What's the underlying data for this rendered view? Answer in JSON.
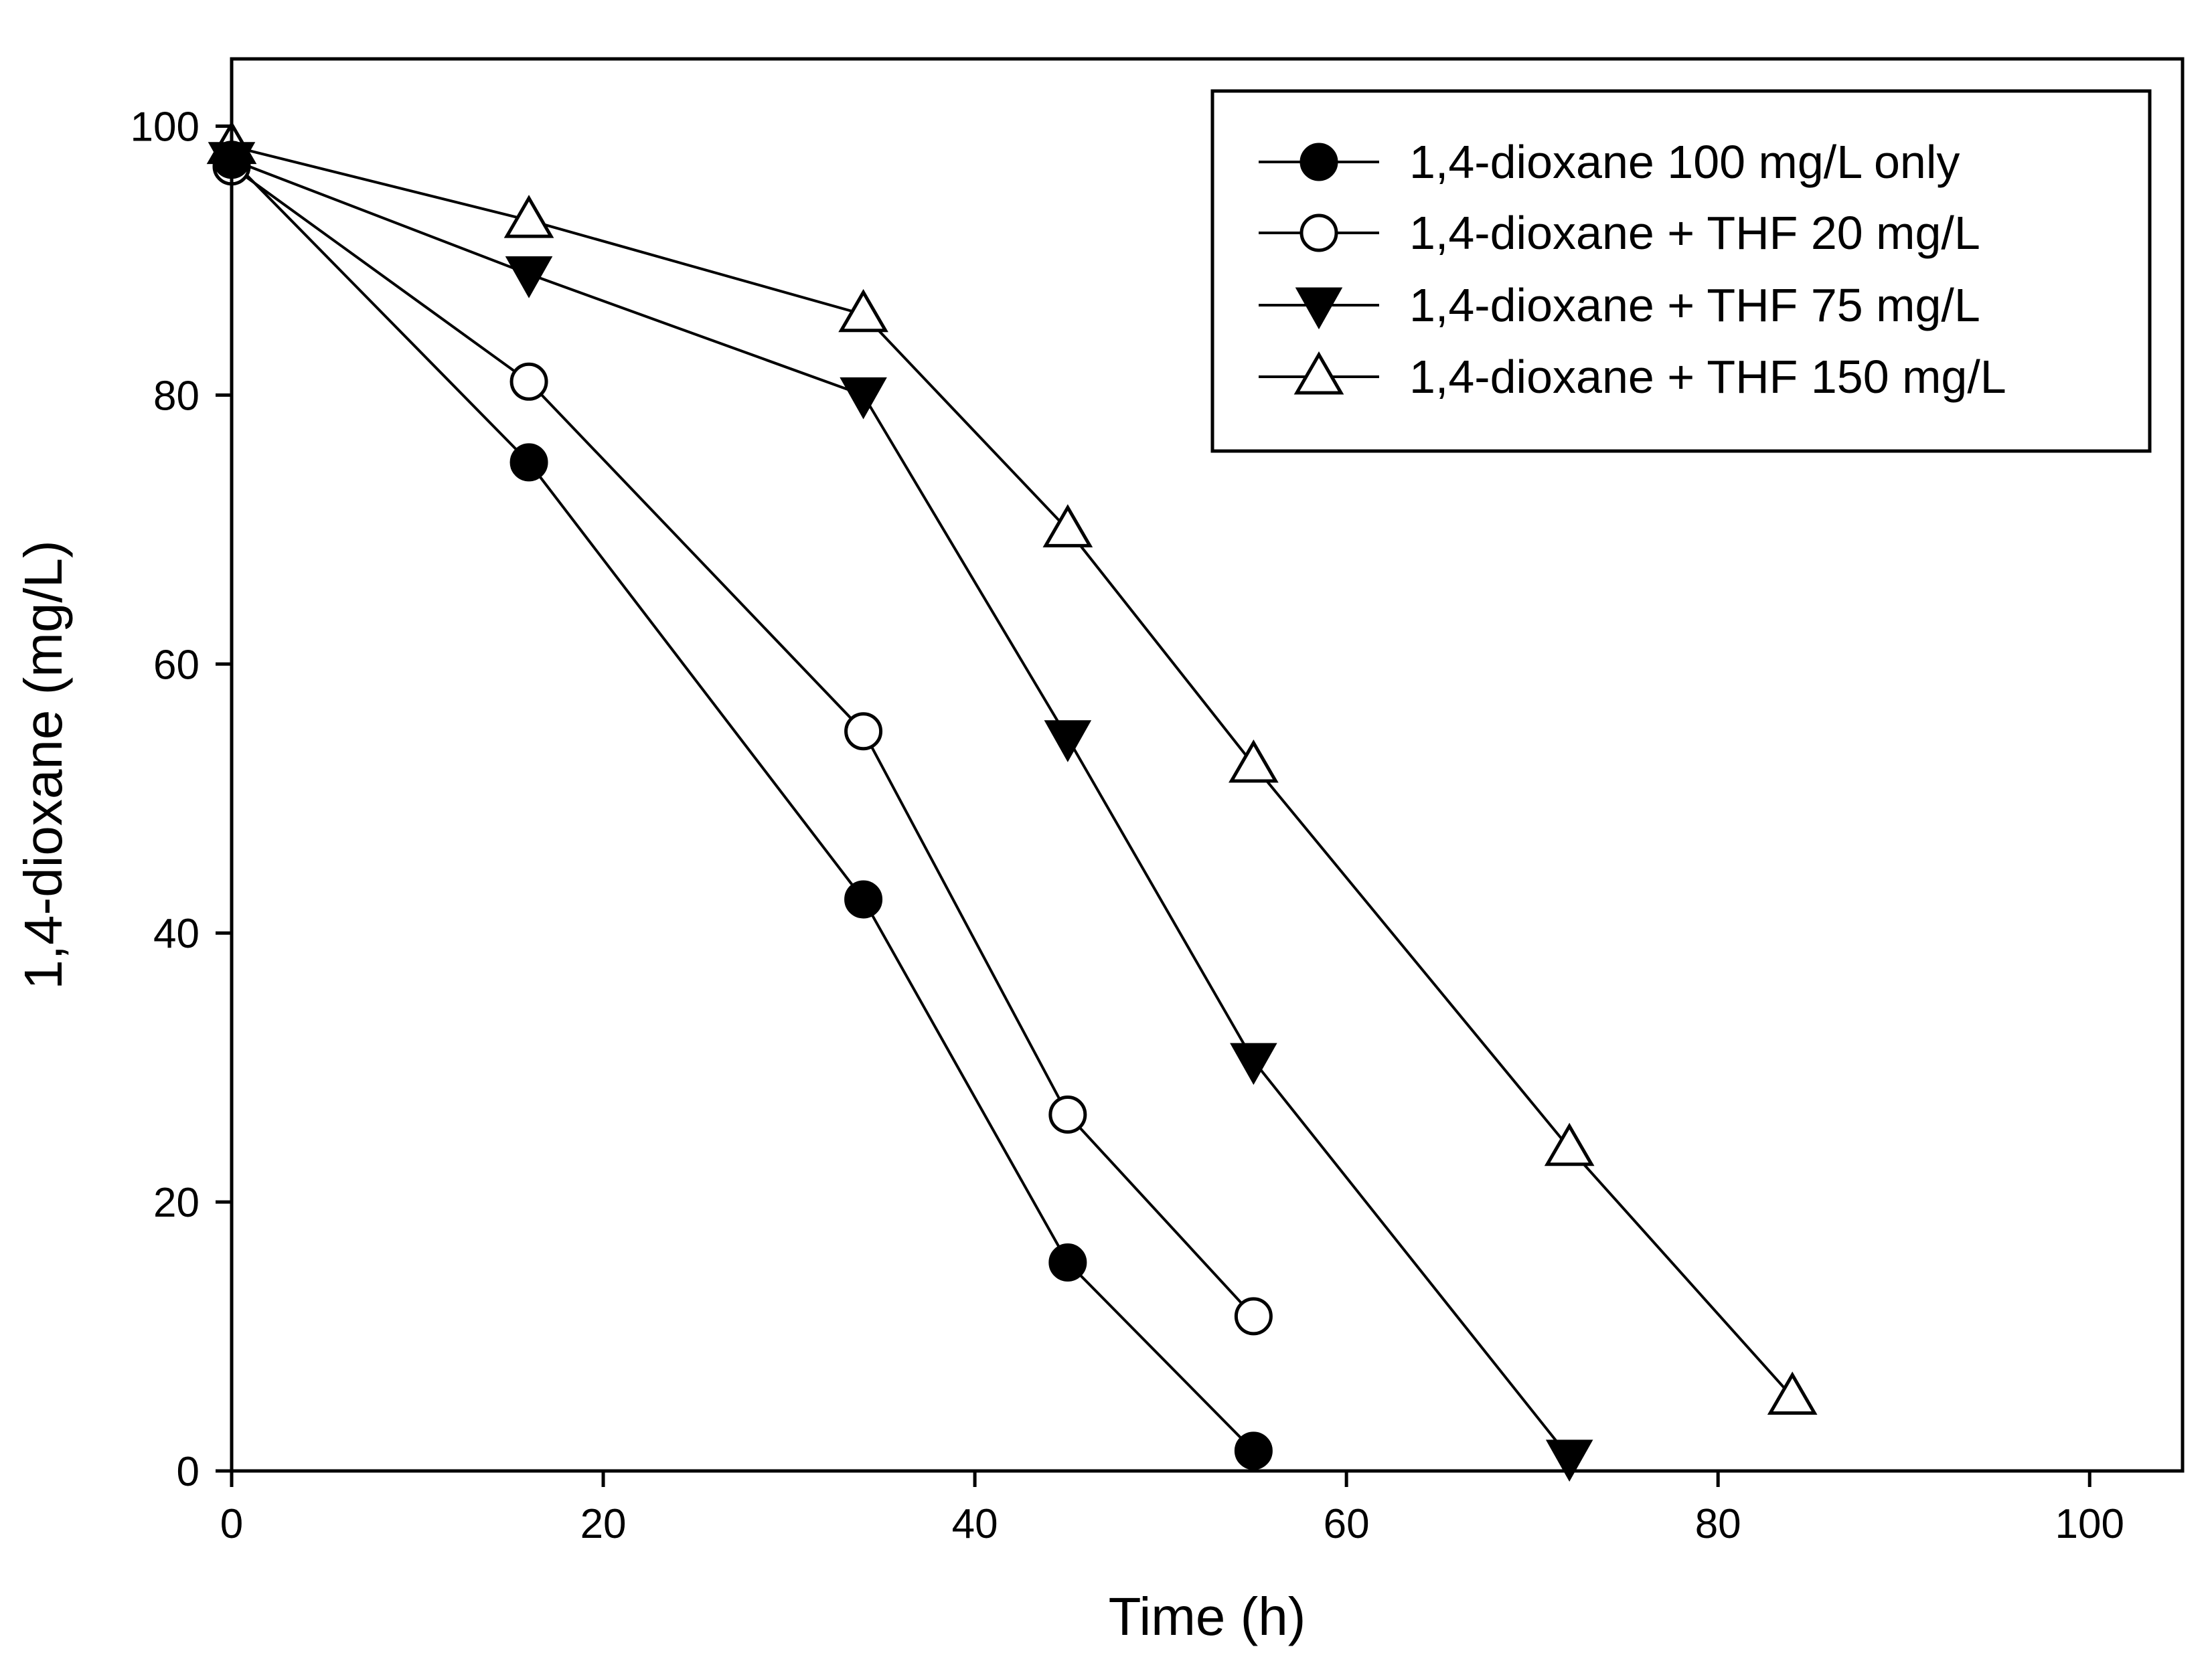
{
  "chart_data": {
    "type": "line",
    "title": "",
    "xlabel": "Time (h)",
    "ylabel": "1,4-dioxane (mg/L)",
    "xlim": [
      0,
      105
    ],
    "ylim": [
      0,
      105
    ],
    "xticks": [
      0,
      20,
      40,
      60,
      80,
      100
    ],
    "yticks": [
      0,
      20,
      40,
      60,
      80,
      100
    ],
    "x_tick_labels": [
      "0",
      "20",
      "40",
      "60",
      "80",
      "100"
    ],
    "y_tick_labels": [
      "0",
      "20",
      "40",
      "60",
      "80",
      "100"
    ],
    "grid": false,
    "legend_position": "top-right",
    "series": [
      {
        "name": "1,4-dioxane 100 mg/L only",
        "marker": "filled-circle",
        "color": "#000000",
        "x": [
          0,
          16,
          34,
          45,
          55
        ],
        "y": [
          97.5,
          75,
          42.5,
          15.5,
          1.5
        ]
      },
      {
        "name": "1,4-dioxane + THF 20 mg/L",
        "marker": "open-circle",
        "color": "#000000",
        "x": [
          0,
          16,
          34,
          45,
          55
        ],
        "y": [
          97,
          81,
          55,
          26.5,
          11.5
        ]
      },
      {
        "name": "1,4-dioxane + THF 75 mg/L",
        "marker": "filled-triangle-down",
        "color": "#000000",
        "x": [
          0,
          16,
          34,
          45,
          55,
          72
        ],
        "y": [
          97.5,
          89,
          80,
          54.5,
          30.5,
          1
        ]
      },
      {
        "name": "1,4-dioxane + THF 150 mg/L",
        "marker": "open-triangle-up",
        "color": "#000000",
        "x": [
          0,
          16,
          34,
          45,
          55,
          72,
          84
        ],
        "y": [
          98.5,
          93,
          86,
          70,
          52.5,
          24,
          5.5
        ]
      }
    ]
  }
}
